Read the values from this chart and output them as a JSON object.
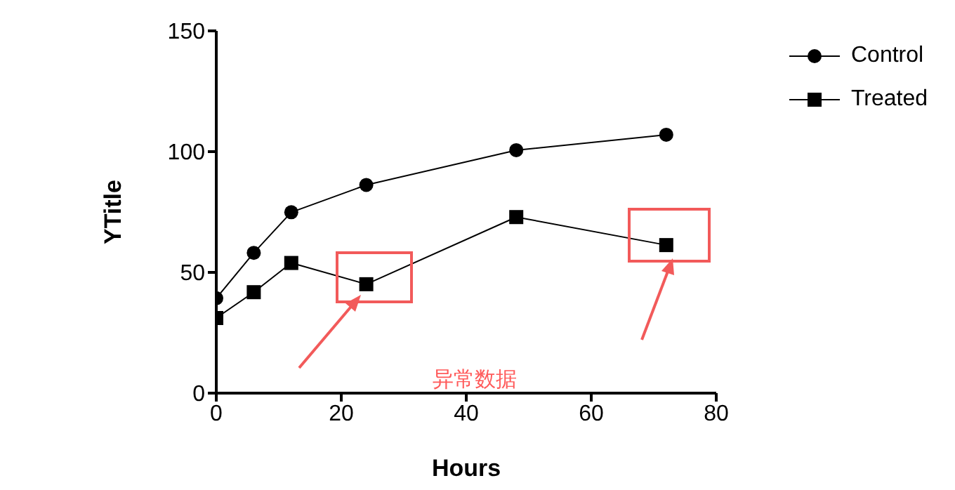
{
  "chart_data": {
    "type": "line",
    "ylabel": "YTitle",
    "xlabel": "Hours",
    "x": [
      0,
      6,
      12,
      24,
      48,
      72
    ],
    "xlim": [
      0,
      80
    ],
    "xticks": [
      0,
      20,
      40,
      60,
      80
    ],
    "ylim": [
      0,
      150
    ],
    "yticks": [
      0,
      50,
      100,
      150
    ],
    "series": [
      {
        "name": "Control",
        "color": "#000000",
        "marker": "circle",
        "values": [
          39.3,
          58.1,
          74.9,
          86.2,
          100.6,
          107
        ]
      },
      {
        "name": "Treated",
        "color": "#000000",
        "marker": "square",
        "values": [
          31.1,
          41.8,
          53.9,
          45.1,
          72.9,
          61.3
        ]
      }
    ],
    "legend": "top right",
    "annotations": [
      "异常数据"
    ]
  }
}
